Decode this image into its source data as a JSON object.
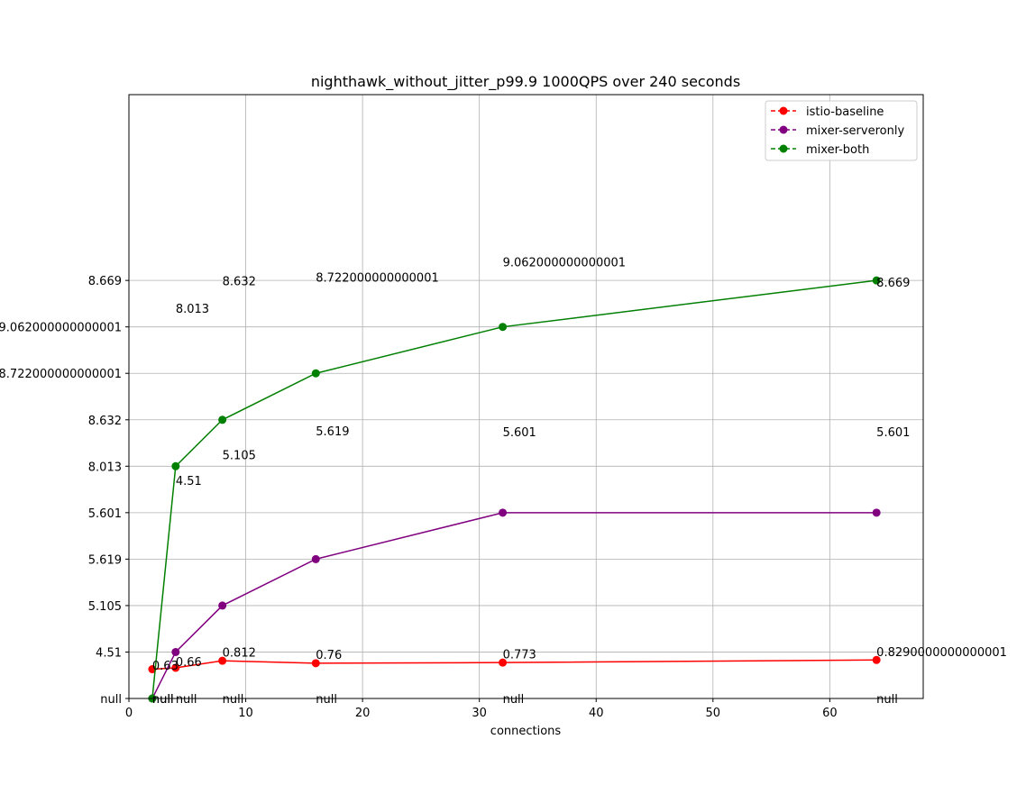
{
  "chart_data": {
    "type": "line",
    "title": "nighthawk_without_jitter_p99.9 1000QPS over 240 seconds",
    "xlabel": "connections",
    "ylabel": "",
    "xlim": [
      0,
      68
    ],
    "xticks": [
      0,
      10,
      20,
      30,
      40,
      50,
      60
    ],
    "y_levels": 13,
    "ytick_labels": [
      "null",
      "4.51",
      "5.105",
      "5.619",
      "5.601",
      "8.013",
      "8.632",
      "8.722000000000001",
      "9.062000000000001",
      "8.669"
    ],
    "ytick_levels": [
      0,
      1,
      2,
      3,
      4,
      5,
      6,
      7,
      8,
      9
    ],
    "grid": true,
    "legend_position": "top-right",
    "x": [
      2,
      4,
      8,
      16,
      32,
      64
    ],
    "series": [
      {
        "name": "istio-baseline",
        "color": "#ff0000",
        "levels": [
          0.63,
          0.66,
          0.812,
          0.76,
          0.773,
          0.829
        ],
        "labels": [
          "0.63",
          "0.66",
          "0.812",
          "0.76",
          "0.773",
          "0.8290000000000001"
        ]
      },
      {
        "name": "mixer-serveronly",
        "color": "#800080",
        "levels": [
          0,
          1,
          2,
          3,
          4,
          4
        ],
        "labels": [
          "null",
          "4.51",
          "5.105",
          "5.619",
          "5.601",
          "5.601"
        ]
      },
      {
        "name": "mixer-both",
        "color": "#008000",
        "levels": [
          0,
          5,
          6,
          7,
          8,
          9
        ],
        "labels": [
          "null",
          "8.013",
          "8.632",
          "8.722000000000001",
          "9.062000000000001",
          "8.669"
        ]
      }
    ],
    "label_columns": [
      {
        "x": 2,
        "texts": [
          "0.63",
          "null",
          "null"
        ],
        "levels": [
          0.62,
          -0.1,
          -0.1
        ]
      },
      {
        "x": 4,
        "texts": [
          "0.66",
          "4.51",
          "8.013",
          "null"
        ],
        "levels": [
          0.7,
          4.6,
          8.3,
          -0.1
        ]
      },
      {
        "x": 8,
        "texts": [
          "0.812",
          "5.105",
          "8.632",
          "null"
        ],
        "levels": [
          0.9,
          5.15,
          8.9,
          -0.1
        ]
      },
      {
        "x": 16,
        "texts": [
          "0.76",
          "5.619",
          "8.722000000000001",
          "null"
        ],
        "levels": [
          0.85,
          5.67,
          8.97,
          -0.1
        ]
      },
      {
        "x": 32,
        "texts": [
          "0.773",
          "5.601",
          "9.062000000000001",
          "null"
        ],
        "levels": [
          0.86,
          5.65,
          9.3,
          -0.1
        ]
      },
      {
        "x": 64,
        "texts": [
          "0.8290000000000001",
          "5.601",
          "8.669",
          "null"
        ],
        "levels": [
          0.91,
          5.65,
          8.87,
          -0.1
        ]
      }
    ]
  }
}
